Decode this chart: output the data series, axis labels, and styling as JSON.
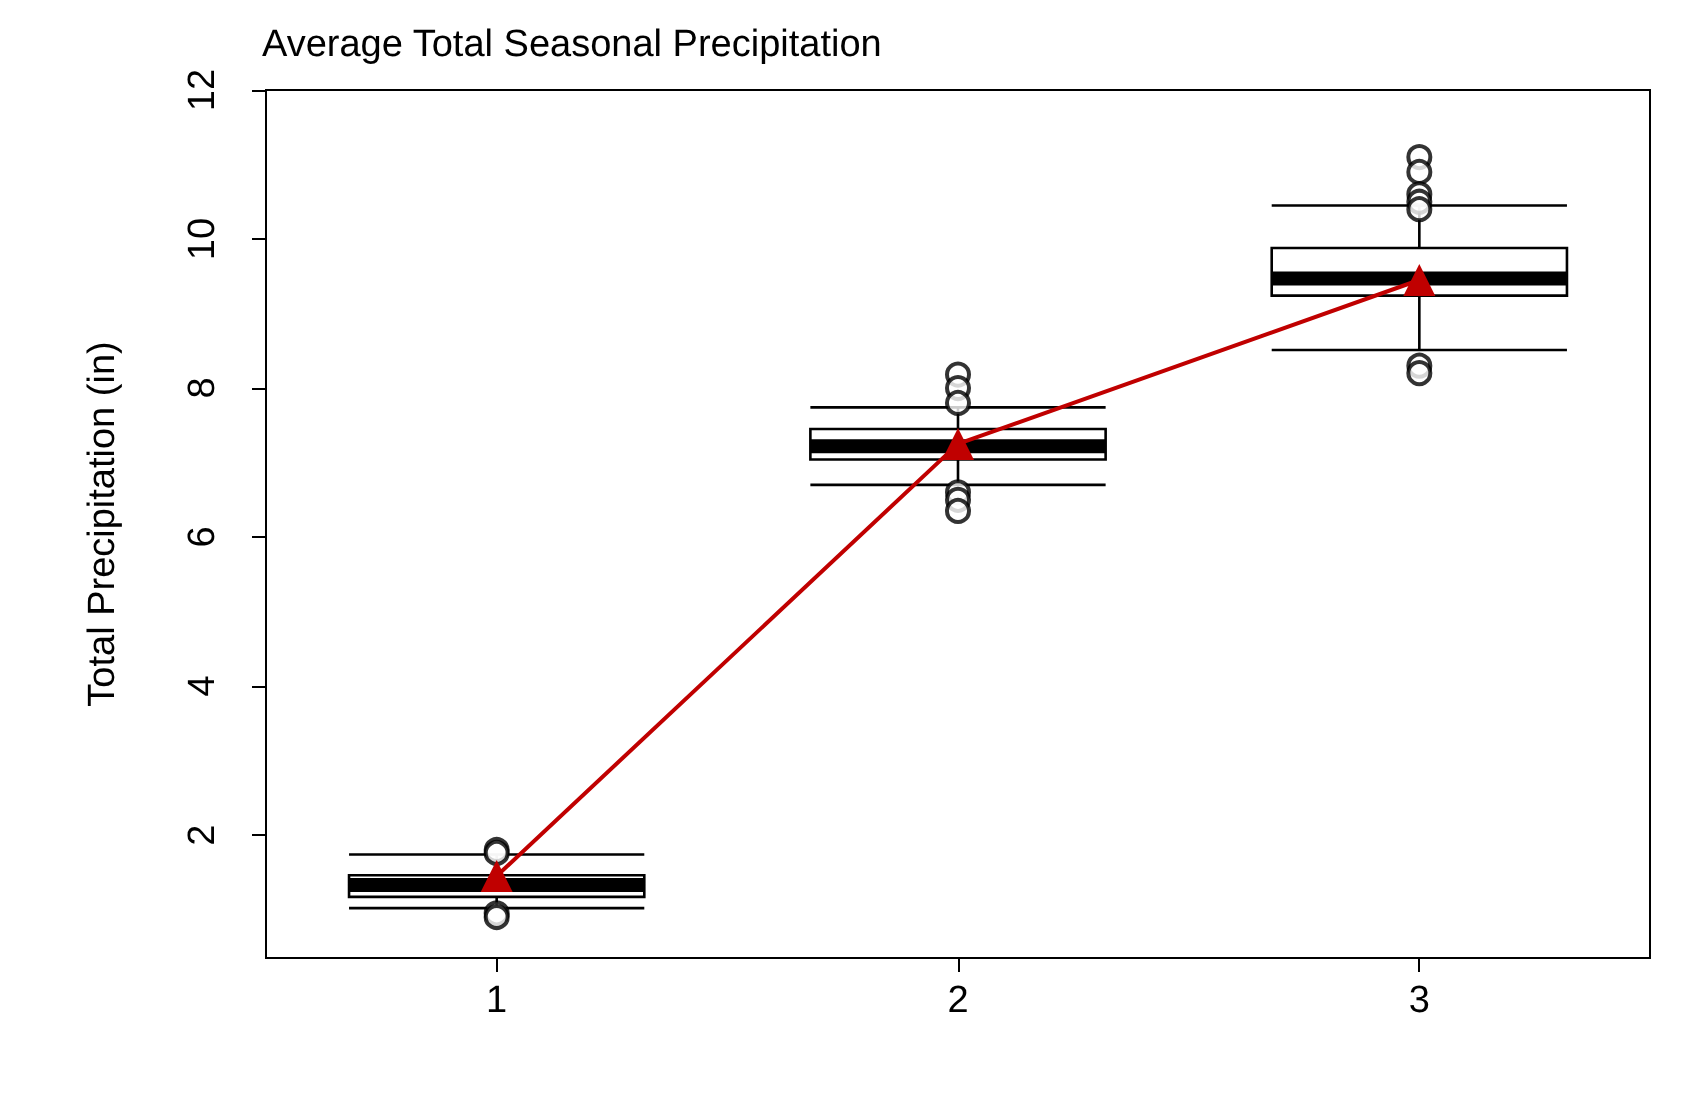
{
  "chart_data": {
    "type": "box",
    "title": "Average Total Seasonal Precipitation",
    "ylabel": "Total Precipitation (in)",
    "categories": [
      "1",
      "2",
      "3"
    ],
    "ylim": [
      0.35,
      12
    ],
    "yticks": [
      2,
      4,
      6,
      8,
      10,
      12
    ],
    "grid": false,
    "series": [
      {
        "color": "#000000",
        "boxes": [
          {
            "low": 1.02,
            "q1": 1.17,
            "median": 1.33,
            "q3": 1.46,
            "high": 1.74,
            "outliers": [
              1.8,
              1.76,
              0.95,
              0.9
            ]
          },
          {
            "low": 6.7,
            "q1": 7.04,
            "median": 7.22,
            "q3": 7.45,
            "high": 7.74,
            "outliers": [
              8.18,
              8.0,
              7.8,
              6.6,
              6.5,
              6.35
            ]
          },
          {
            "low": 8.51,
            "q1": 9.24,
            "median": 9.47,
            "q3": 9.88,
            "high": 10.45,
            "outliers": [
              11.1,
              10.9,
              10.6,
              10.5,
              10.4,
              8.3,
              8.2
            ]
          }
        ]
      },
      {
        "type": "line",
        "color": "#c00000",
        "values": [
          1.45,
          7.25,
          9.45
        ],
        "marker": "triangle"
      }
    ]
  }
}
